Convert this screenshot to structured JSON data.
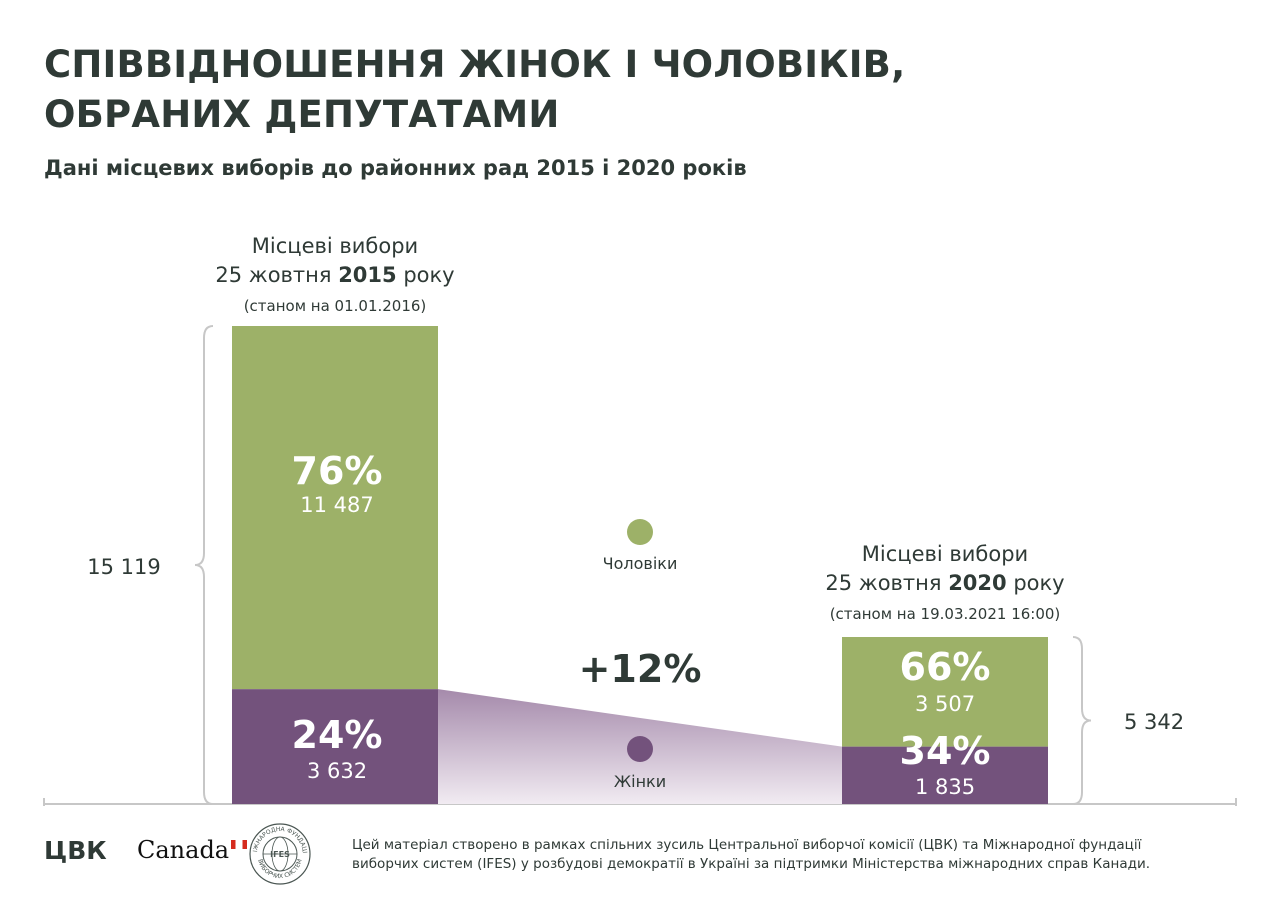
{
  "title": {
    "line1": "СПІВВІДНОШЕННЯ ЖІНОК І ЧОЛОВІКІВ,",
    "line2": "ОБРАНИХ ДЕПУТАТАМИ"
  },
  "subtitle": "Дані місцевих виборів до районних рад 2015 і 2020 років",
  "colors": {
    "men": "#9db168",
    "women": "#73527c",
    "connector": "#c9b6cc",
    "text": "#2f3a36",
    "axis": "#c7c7c7"
  },
  "chart_data": {
    "type": "bar",
    "stacked": true,
    "categories": [
      "2015",
      "2020"
    ],
    "series": [
      {
        "name": "Чоловіки",
        "values": [
          11487,
          3507
        ],
        "percent": [
          "76%",
          "66%"
        ],
        "value_labels": [
          "11 487",
          "3 507"
        ]
      },
      {
        "name": "Жінки",
        "values": [
          3632,
          1835
        ],
        "percent": [
          "24%",
          "34%"
        ],
        "value_labels": [
          "3 632",
          "1 835"
        ]
      }
    ],
    "totals": [
      15119,
      5342
    ],
    "total_labels": [
      "15 119",
      "5 342"
    ],
    "change_label": "+12%",
    "bar_headings": [
      {
        "line1": "Місцеві вибори",
        "line2_pre": "25 жовтня ",
        "line2_bold": "2015",
        "line2_post": " року",
        "note": "(станом на 01.01.2016)"
      },
      {
        "line1": "Місцеві вибори",
        "line2_pre": "25 жовтня ",
        "line2_bold": "2020",
        "line2_post": " року",
        "note": "(станом на 19.03.2021 16:00)"
      }
    ],
    "legend": [
      {
        "label": "Чоловіки",
        "color": "#9db168"
      },
      {
        "label": "Жінки",
        "color": "#73527c"
      }
    ]
  },
  "footer": {
    "cvk_logo": "ЦВК",
    "canada_logo": "Canada",
    "ifes_seal_arc_top": "МІЖНАРОДНА ФУНДАЦІЯ",
    "ifes_seal_arc_bottom": "ВИБОРЧИХ СИСТЕМ",
    "ifes_seal_center": "IFES",
    "text_line1": "Цей матеріал створено в рамках спільних зусиль Центральної виборчої комісії (ЦВК) та Міжнародної фундації",
    "text_line2": "виборчих систем (IFES) у розбудові демократії в Україні за підтримки Міністерства міжнародних справ Канади."
  }
}
